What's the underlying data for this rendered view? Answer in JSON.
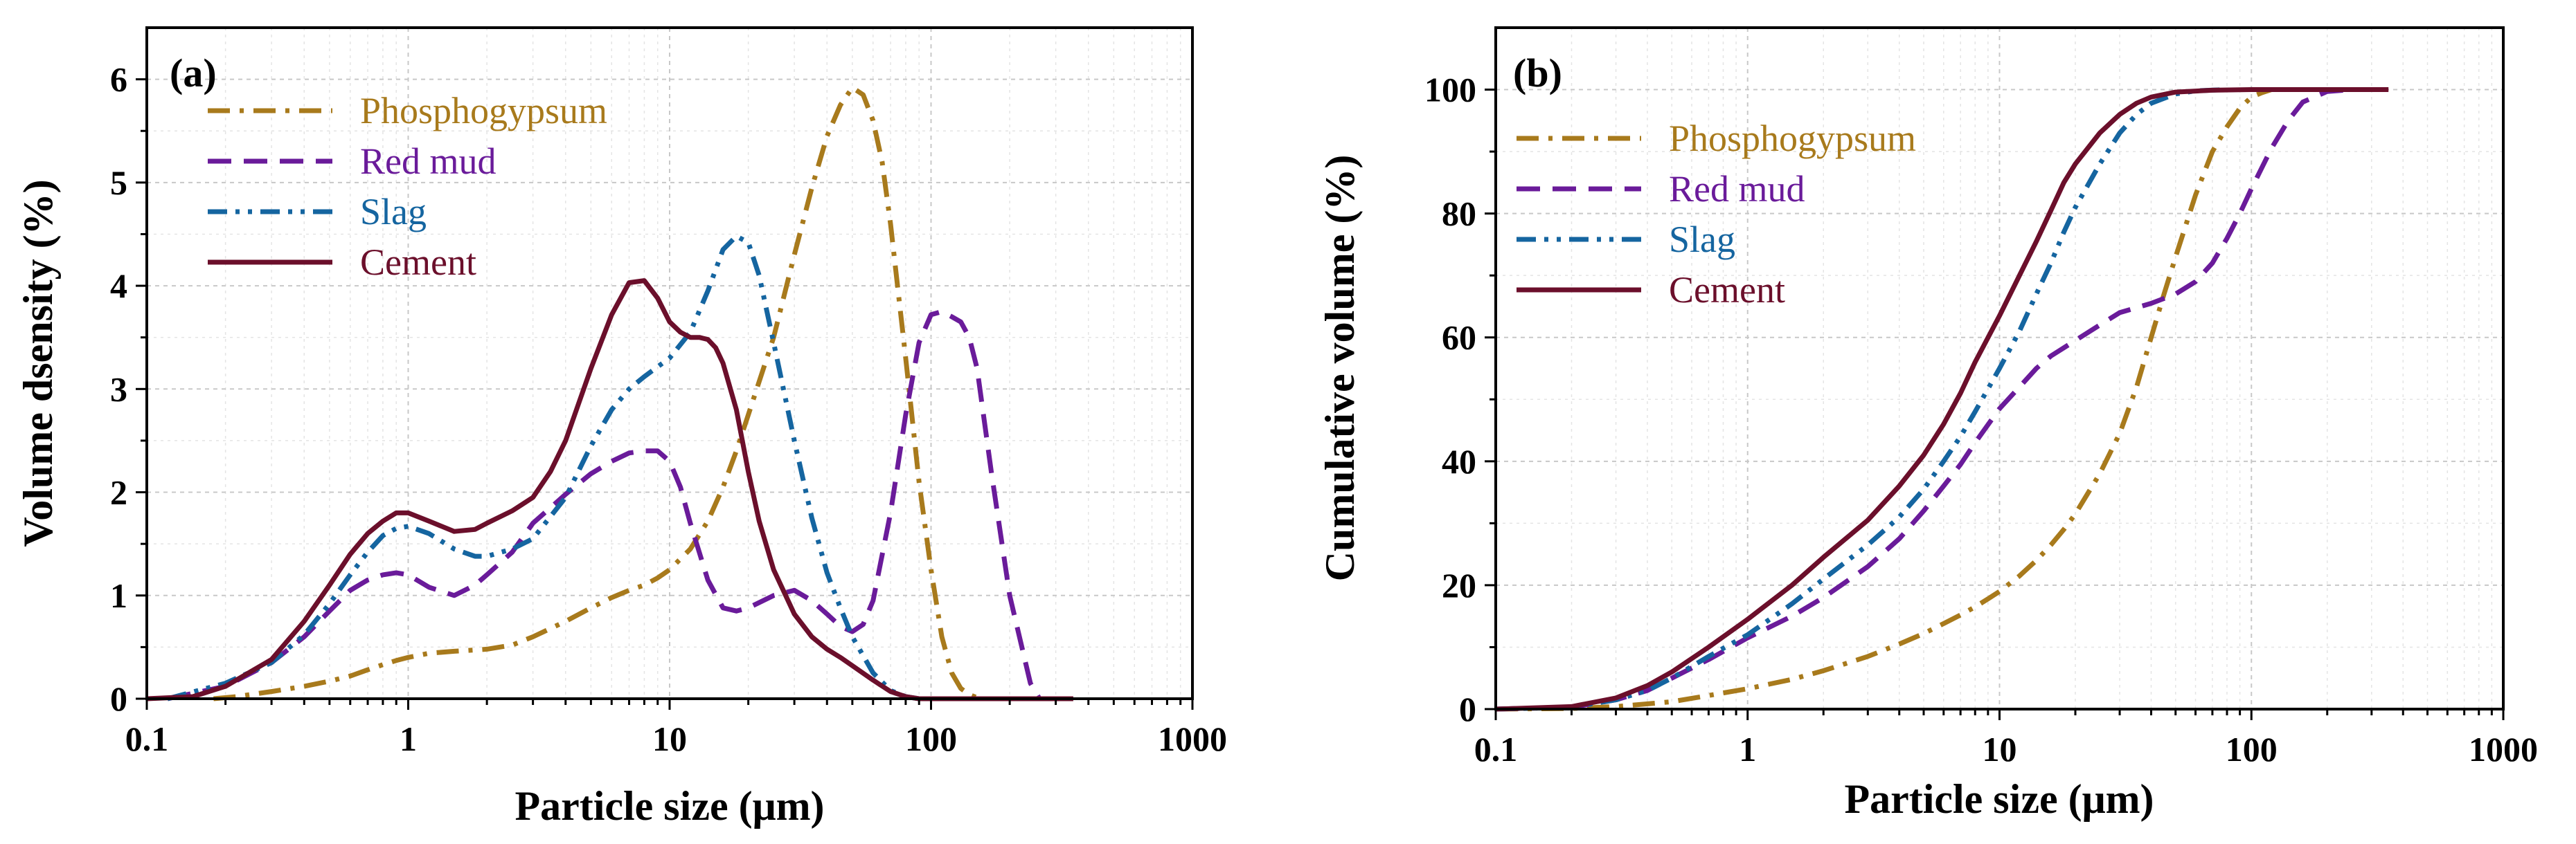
{
  "chart_data": [
    {
      "panel": "(a)",
      "type": "line",
      "xscale": "log",
      "xlim": [
        0.1,
        1000
      ],
      "ylim": [
        0,
        6.5
      ],
      "xticks": [
        0.1,
        1,
        10,
        100,
        1000
      ],
      "xtick_labels": [
        "0.1",
        "1",
        "10",
        "100",
        "1000"
      ],
      "yticks": [
        0,
        1,
        2,
        3,
        4,
        5,
        6
      ],
      "ytick_labels": [
        "0",
        "1",
        "2",
        "3",
        "4",
        "5",
        "6"
      ],
      "xlabel": "Particle size (μm)",
      "ylabel": "Volume dsensity (%)",
      "grid": true,
      "legend_position": "top-left",
      "series": [
        {
          "name": "Phosphogypsum",
          "color": "#A87A1C",
          "dash": "dashdot",
          "x": [
            0.18,
            0.22,
            0.3,
            0.4,
            0.5,
            0.6,
            0.7,
            0.8,
            0.9,
            1.0,
            1.2,
            1.5,
            2,
            2.5,
            3,
            4,
            5,
            6,
            7,
            8,
            9,
            10,
            12,
            14,
            16,
            18,
            20,
            25,
            30,
            35,
            40,
            45,
            50,
            55,
            60,
            65,
            70,
            80,
            90,
            100,
            110,
            120,
            130,
            140,
            150,
            160
          ],
          "y": [
            0,
            0.02,
            0.07,
            0.12,
            0.17,
            0.22,
            0.28,
            0.33,
            0.37,
            0.4,
            0.44,
            0.46,
            0.48,
            0.52,
            0.6,
            0.75,
            0.88,
            0.98,
            1.05,
            1.1,
            1.17,
            1.25,
            1.45,
            1.72,
            2.05,
            2.4,
            2.75,
            3.5,
            4.3,
            4.95,
            5.45,
            5.75,
            5.92,
            5.85,
            5.6,
            5.2,
            4.6,
            3.3,
            2.1,
            1.25,
            0.6,
            0.25,
            0.1,
            0.04,
            0.01,
            0
          ]
        },
        {
          "name": "Red mud",
          "color": "#6A1B9A",
          "dash": "dashed",
          "x": [
            0.12,
            0.2,
            0.3,
            0.4,
            0.5,
            0.6,
            0.7,
            0.8,
            0.9,
            1.0,
            1.2,
            1.5,
            1.8,
            2,
            2.5,
            3,
            4,
            5,
            6,
            7,
            8,
            9,
            10,
            11,
            12,
            14,
            16,
            18,
            20,
            25,
            30,
            35,
            40,
            45,
            50,
            55,
            60,
            70,
            80,
            90,
            100,
            110,
            120,
            130,
            140,
            150,
            170,
            200,
            240,
            260
          ],
          "y": [
            0,
            0.12,
            0.35,
            0.6,
            0.85,
            1.05,
            1.15,
            1.2,
            1.22,
            1.2,
            1.08,
            1.0,
            1.1,
            1.2,
            1.42,
            1.7,
            1.98,
            2.18,
            2.3,
            2.38,
            2.4,
            2.4,
            2.3,
            2.05,
            1.7,
            1.15,
            0.88,
            0.85,
            0.88,
            1.0,
            1.05,
            0.95,
            0.82,
            0.7,
            0.65,
            0.72,
            0.95,
            1.8,
            2.75,
            3.45,
            3.72,
            3.75,
            3.7,
            3.65,
            3.5,
            3.2,
            2.2,
            1.0,
            0.15,
            0
          ]
        },
        {
          "name": "Slag",
          "color": "#1565A0",
          "dash": "dashdotdot",
          "x": [
            0.12,
            0.2,
            0.3,
            0.4,
            0.5,
            0.6,
            0.7,
            0.8,
            0.9,
            1.0,
            1.2,
            1.5,
            1.8,
            2,
            2.5,
            3,
            4,
            5,
            6,
            7,
            8,
            10,
            12,
            14,
            16,
            18,
            20,
            22,
            25,
            30,
            35,
            40,
            45,
            50,
            60,
            70,
            80,
            90
          ],
          "y": [
            0,
            0.15,
            0.35,
            0.62,
            0.92,
            1.2,
            1.42,
            1.58,
            1.65,
            1.67,
            1.6,
            1.45,
            1.38,
            1.38,
            1.45,
            1.55,
            1.95,
            2.45,
            2.8,
            3.0,
            3.12,
            3.3,
            3.55,
            3.95,
            4.35,
            4.48,
            4.42,
            4.1,
            3.45,
            2.5,
            1.75,
            1.22,
            0.88,
            0.6,
            0.25,
            0.08,
            0.02,
            0
          ]
        },
        {
          "name": "Cement",
          "color": "#6B0F2B",
          "dash": "solid",
          "x": [
            0.1,
            0.15,
            0.2,
            0.3,
            0.4,
            0.5,
            0.6,
            0.7,
            0.8,
            0.9,
            1.0,
            1.2,
            1.5,
            1.8,
            2,
            2.5,
            3,
            3.5,
            4,
            5,
            6,
            7,
            8,
            9,
            10,
            11,
            12,
            13,
            14,
            15,
            16,
            18,
            20,
            22,
            25,
            30,
            35,
            40,
            45,
            50,
            60,
            70,
            80,
            90,
            100,
            200,
            350
          ],
          "y": [
            0,
            0.02,
            0.12,
            0.38,
            0.75,
            1.1,
            1.4,
            1.6,
            1.72,
            1.8,
            1.8,
            1.72,
            1.62,
            1.64,
            1.7,
            1.82,
            1.95,
            2.2,
            2.5,
            3.2,
            3.72,
            4.03,
            4.05,
            3.88,
            3.65,
            3.55,
            3.5,
            3.5,
            3.48,
            3.4,
            3.25,
            2.8,
            2.2,
            1.72,
            1.25,
            0.82,
            0.6,
            0.48,
            0.4,
            0.32,
            0.18,
            0.07,
            0.02,
            0,
            0,
            0,
            0
          ]
        }
      ]
    },
    {
      "panel": "(b)",
      "type": "line",
      "xscale": "log",
      "xlim": [
        0.1,
        1000
      ],
      "ylim": [
        0,
        110
      ],
      "xticks": [
        0.1,
        1,
        10,
        100,
        1000
      ],
      "xtick_labels": [
        "0.1",
        "1",
        "10",
        "100",
        "1000"
      ],
      "yticks": [
        0,
        20,
        40,
        60,
        80,
        100
      ],
      "ytick_labels": [
        "0",
        "20",
        "40",
        "60",
        "80",
        "100"
      ],
      "xlabel": "Particle size (μm)",
      "ylabel": "Cumulative volume (%)",
      "grid": true,
      "legend_position": "top-left",
      "series": [
        {
          "name": "Phosphogypsum",
          "color": "#A87A1C",
          "dash": "dashdot",
          "x": [
            0.1,
            0.2,
            0.3,
            0.5,
            0.7,
            1,
            1.5,
            2,
            3,
            4,
            5,
            6,
            7,
            8,
            9,
            10,
            12,
            14,
            16,
            18,
            20,
            25,
            30,
            35,
            40,
            45,
            50,
            60,
            70,
            80,
            90,
            100,
            110,
            120
          ],
          "y": [
            0,
            0.1,
            0.4,
            1.2,
            2.2,
            3.3,
            4.8,
            6.2,
            8.5,
            10.5,
            12.2,
            13.8,
            15.2,
            16.5,
            17.8,
            19,
            21.5,
            24,
            26.5,
            29,
            31.5,
            38,
            44.5,
            52,
            60,
            67,
            73,
            83,
            90,
            94,
            97,
            98.8,
            99.5,
            100
          ]
        },
        {
          "name": "Red mud",
          "color": "#6A1B9A",
          "dash": "dashed",
          "x": [
            0.1,
            0.2,
            0.3,
            0.4,
            0.5,
            0.7,
            1,
            1.5,
            2,
            3,
            4,
            5,
            6,
            7,
            8,
            10,
            12,
            14,
            16,
            20,
            25,
            30,
            40,
            50,
            60,
            70,
            80,
            90,
            100,
            120,
            140,
            160,
            200,
            250
          ],
          "y": [
            0,
            0.3,
            1.5,
            3,
            5,
            8,
            11.5,
            15,
            18,
            23,
            27.5,
            32,
            36,
            39.5,
            43,
            48.5,
            52,
            55,
            57,
            59.5,
            62,
            64,
            65.5,
            67,
            69,
            72,
            76,
            80,
            84,
            90.5,
            95,
            98,
            99.7,
            100
          ]
        },
        {
          "name": "Slag",
          "color": "#1565A0",
          "dash": "dashdotdot",
          "x": [
            0.1,
            0.2,
            0.3,
            0.4,
            0.5,
            0.7,
            1,
            1.5,
            2,
            3,
            4,
            5,
            6,
            7,
            8,
            10,
            12,
            14,
            16,
            18,
            20,
            25,
            30,
            35,
            40,
            50,
            60,
            80
          ],
          "y": [
            0,
            0.3,
            1.5,
            3,
            5,
            8.5,
            12,
            17,
            21,
            26.5,
            31,
            35.5,
            40,
            44,
            48,
            55,
            61,
            67,
            72,
            77,
            81,
            88,
            93,
            96,
            97.8,
            99.3,
            99.8,
            100
          ]
        },
        {
          "name": "Cement",
          "color": "#6B0F2B",
          "dash": "solid",
          "x": [
            0.1,
            0.2,
            0.3,
            0.4,
            0.5,
            0.7,
            1,
            1.5,
            2,
            3,
            4,
            5,
            6,
            7,
            8,
            10,
            12,
            14,
            16,
            18,
            20,
            25,
            30,
            35,
            40,
            50,
            70,
            100,
            200,
            350
          ],
          "y": [
            0,
            0.4,
            1.8,
            3.8,
            6,
            10,
            14.5,
            20,
            24.5,
            30.5,
            36,
            41,
            46,
            51,
            56,
            63.5,
            70,
            75.5,
            80.5,
            85,
            88,
            93,
            96,
            97.8,
            98.8,
            99.6,
            99.9,
            100,
            100,
            100
          ]
        }
      ]
    }
  ]
}
